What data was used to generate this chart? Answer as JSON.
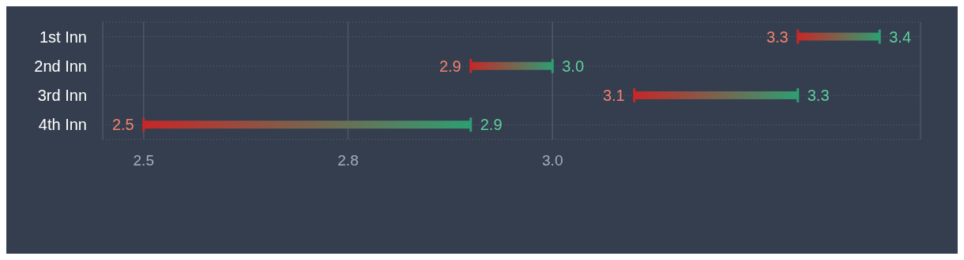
{
  "chart_data": {
    "type": "bar",
    "orientation": "horizontal",
    "categories": [
      "1st Inn",
      "2nd Inn",
      "3rd Inn",
      "4th Inn"
    ],
    "series": [
      {
        "color": "#2e9e72",
        "base": [
          3.3,
          2.9,
          3.1,
          2.5
        ],
        "values": [
          0.1,
          0.1,
          0.2,
          0.4
        ]
      }
    ],
    "xlim": [
      2.45,
      3.45
    ],
    "xticks": [
      2.5,
      {
        "value": 2.75,
        "label": "2.8"
      },
      {
        "value": 3.0,
        "label": "3.0"
      }
    ],
    "grid": true,
    "annotations": [
      {
        "text": "3.3",
        "x": 3.3,
        "y": "1st Inn"
      },
      {
        "text": "3.4",
        "x": 3.4,
        "y": "1st Inn"
      },
      {
        "text": "2.9",
        "x": 2.9,
        "y": "2nd Inn"
      },
      {
        "text": "3.0",
        "x": 3.0,
        "y": "2nd Inn"
      },
      {
        "text": "3.1",
        "x": 3.1,
        "y": "3rd Inn"
      },
      {
        "text": "3.3",
        "x": 3.3,
        "y": "3rd Inn"
      },
      {
        "text": "2.5",
        "x": 2.5,
        "y": "4th Inn"
      },
      {
        "text": "2.9",
        "x": 2.9,
        "y": "4th Inn"
      }
    ]
  }
}
